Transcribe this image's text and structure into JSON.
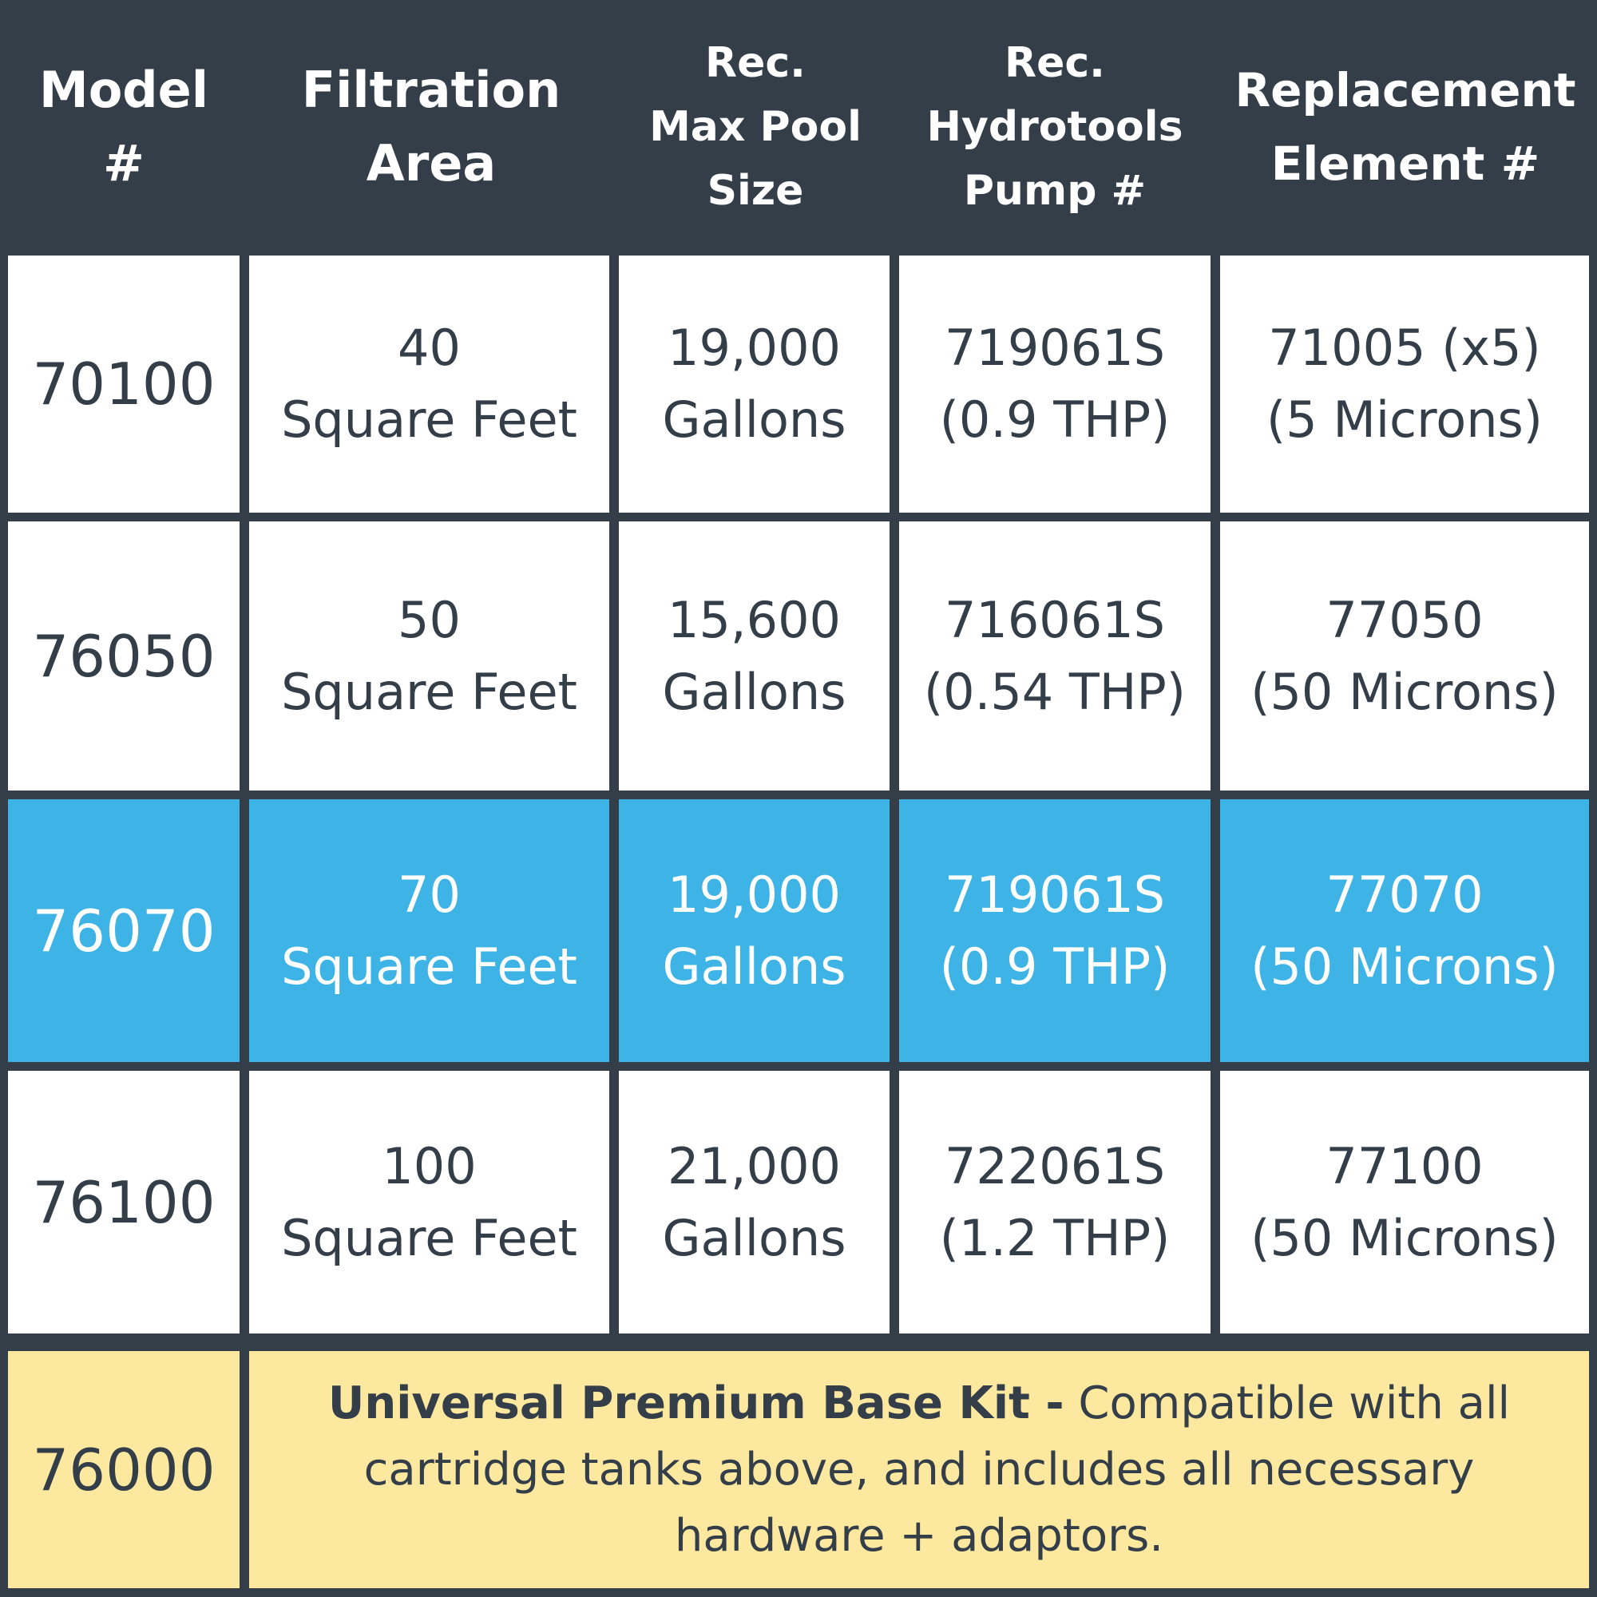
{
  "header": {
    "model": "Model\n#",
    "filtration": "Filtration\nArea",
    "pool": "Rec.\nMax Pool\nSize",
    "pump": "Rec.\nHydrotools\nPump #",
    "replacement": "Replacement\nElement #"
  },
  "rows": [
    {
      "model": "70100",
      "filtration": "40\nSquare Feet",
      "pool": "19,000\nGallons",
      "pump": "719061S\n(0.9 THP)",
      "replacement": "71005 (x5)\n(5 Microns)"
    },
    {
      "model": "76050",
      "filtration": "50\nSquare Feet",
      "pool": "15,600\nGallons",
      "pump": "716061S\n(0.54 THP)",
      "replacement": "77050\n(50 Microns)"
    },
    {
      "model": "76070",
      "filtration": "70\nSquare Feet",
      "pool": "19,000\nGallons",
      "pump": "719061S\n(0.9 THP)",
      "replacement": "77070\n(50 Microns)"
    },
    {
      "model": "76100",
      "filtration": "100\nSquare Feet",
      "pool": "21,000\nGallons",
      "pump": "722061S\n(1.2 THP)",
      "replacement": "77100\n(50 Microns)"
    }
  ],
  "kit": {
    "model": "76000",
    "title": "Universal Premium Base Kit -",
    "description": "Compatible with all cartridge tanks above, and includes all necessary hardware + adaptors."
  },
  "colors": {
    "dark": "#333e49",
    "highlight": "#3eb3e5",
    "kit": "#fde8a0",
    "white": "#ffffff"
  }
}
